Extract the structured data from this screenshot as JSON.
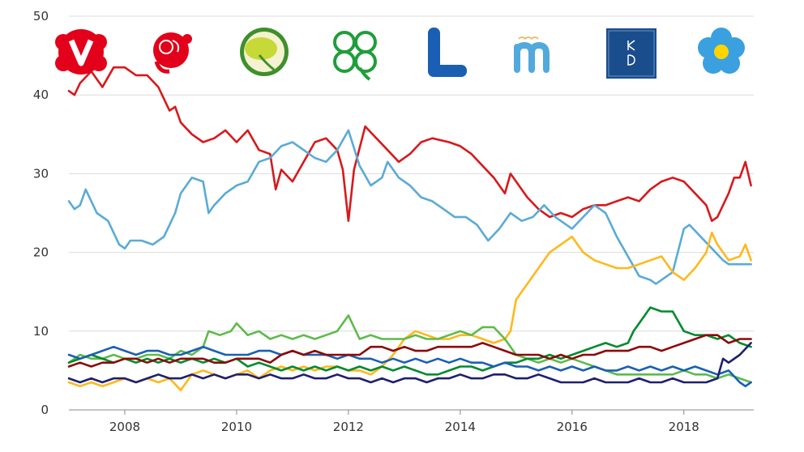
{
  "chart_data": {
    "type": "line",
    "title": "",
    "xlabel": "",
    "ylabel": "",
    "xlim": [
      2007.0,
      2019.25
    ],
    "ylim": [
      0,
      50
    ],
    "grid": true,
    "x_ticks": [
      {
        "value": 2008,
        "label": "2008"
      },
      {
        "value": 2010,
        "label": "2010"
      },
      {
        "value": 2012,
        "label": "2012"
      },
      {
        "value": 2014,
        "label": "2014"
      },
      {
        "value": 2016,
        "label": "2016"
      },
      {
        "value": 2018,
        "label": "2018"
      }
    ],
    "y_ticks": [
      {
        "value": 0,
        "label": "0"
      },
      {
        "value": 10,
        "label": "10"
      },
      {
        "value": 20,
        "label": "20"
      },
      {
        "value": 30,
        "label": "30"
      },
      {
        "value": 40,
        "label": "40"
      },
      {
        "value": 50,
        "label": "50"
      }
    ],
    "legend": {
      "placement": "top",
      "entries": [
        {
          "logo": "v-logo",
          "color": "#e2001a"
        },
        {
          "logo": "s-rose-logo",
          "color": "#e2001a"
        },
        {
          "logo": "mp-dandelion-logo",
          "color": "#5aa832"
        },
        {
          "logo": "c-clover-logo",
          "color": "#1f9e3a"
        },
        {
          "logo": "l-logo",
          "color": "#1a5fb4"
        },
        {
          "logo": "m-logo",
          "color": "#52a9dc"
        },
        {
          "logo": "kd-logo",
          "color": "#1a4d8c"
        },
        {
          "logo": "sd-flower-logo",
          "color": "#3aa0e0"
        }
      ]
    },
    "series": [
      {
        "color": "#d7191c",
        "x": [
          2007.0,
          2007.1,
          2007.2,
          2007.4,
          2007.6,
          2007.8,
          2008.0,
          2008.2,
          2008.4,
          2008.6,
          2008.8,
          2008.9,
          2009.0,
          2009.2,
          2009.4,
          2009.6,
          2009.8,
          2010.0,
          2010.2,
          2010.4,
          2010.6,
          2010.7,
          2010.8,
          2011.0,
          2011.2,
          2011.4,
          2011.6,
          2011.8,
          2011.9,
          2012.0,
          2012.1,
          2012.3,
          2012.5,
          2012.7,
          2012.9,
          2013.1,
          2013.3,
          2013.5,
          2013.8,
          2014.0,
          2014.2,
          2014.4,
          2014.6,
          2014.8,
          2014.9,
          2015.0,
          2015.2,
          2015.4,
          2015.6,
          2015.8,
          2016.0,
          2016.2,
          2016.4,
          2016.6,
          2016.8,
          2017.0,
          2017.2,
          2017.4,
          2017.6,
          2017.8,
          2018.0,
          2018.2,
          2018.4,
          2018.5,
          2018.6,
          2018.8,
          2018.9,
          2019.0,
          2019.1,
          2019.2
        ],
        "y": [
          40.5,
          40.0,
          41.5,
          43.0,
          41.0,
          43.5,
          43.5,
          42.5,
          42.5,
          41.0,
          38.0,
          38.5,
          36.5,
          35.0,
          34.0,
          34.5,
          35.5,
          34.0,
          35.5,
          33.0,
          32.5,
          28.0,
          30.5,
          29.0,
          31.5,
          34.0,
          34.5,
          33.0,
          30.5,
          24.0,
          30.5,
          36.0,
          34.5,
          33.0,
          31.5,
          32.5,
          34.0,
          34.5,
          34.0,
          33.5,
          32.5,
          31.0,
          29.5,
          27.5,
          30.0,
          29.0,
          27.0,
          25.5,
          24.5,
          25.0,
          24.5,
          25.5,
          26.0,
          26.0,
          26.5,
          27.0,
          26.5,
          28.0,
          29.0,
          29.5,
          29.0,
          27.5,
          26.0,
          24.0,
          24.5,
          27.5,
          29.5,
          29.5,
          31.5,
          28.5
        ]
      },
      {
        "color": "#5aabd6",
        "x": [
          2007.0,
          2007.1,
          2007.2,
          2007.3,
          2007.5,
          2007.7,
          2007.9,
          2008.0,
          2008.1,
          2008.3,
          2008.5,
          2008.7,
          2008.9,
          2009.0,
          2009.2,
          2009.4,
          2009.5,
          2009.6,
          2009.8,
          2010.0,
          2010.2,
          2010.4,
          2010.6,
          2010.8,
          2011.0,
          2011.2,
          2011.4,
          2011.6,
          2011.8,
          2012.0,
          2012.2,
          2012.4,
          2012.6,
          2012.7,
          2012.9,
          2013.1,
          2013.3,
          2013.5,
          2013.7,
          2013.9,
          2014.1,
          2014.3,
          2014.5,
          2014.7,
          2014.9,
          2015.1,
          2015.3,
          2015.5,
          2015.7,
          2015.9,
          2016.0,
          2016.2,
          2016.4,
          2016.6,
          2016.8,
          2017.0,
          2017.2,
          2017.4,
          2017.5,
          2017.6,
          2017.8,
          2018.0,
          2018.1,
          2018.3,
          2018.5,
          2018.7,
          2018.8,
          2019.0,
          2019.2
        ],
        "y": [
          26.5,
          25.5,
          26.0,
          28.0,
          25.0,
          24.0,
          21.0,
          20.5,
          21.5,
          21.5,
          21.0,
          22.0,
          25.0,
          27.5,
          29.5,
          29.0,
          25.0,
          26.0,
          27.5,
          28.5,
          29.0,
          31.5,
          32.0,
          33.5,
          34.0,
          33.0,
          32.0,
          31.5,
          33.0,
          35.5,
          31.0,
          28.5,
          29.5,
          31.5,
          29.5,
          28.5,
          27.0,
          26.5,
          25.5,
          24.5,
          24.5,
          23.5,
          21.5,
          23.0,
          25.0,
          24.0,
          24.5,
          26.0,
          24.5,
          23.5,
          23.0,
          24.5,
          26.0,
          25.0,
          22.0,
          19.5,
          17.0,
          16.5,
          16.0,
          16.5,
          17.5,
          23.0,
          23.5,
          22.0,
          20.5,
          19.0,
          18.5,
          18.5,
          18.5
        ]
      },
      {
        "color": "#ffb81c",
        "x": [
          2007.0,
          2007.2,
          2007.4,
          2007.6,
          2007.8,
          2008.0,
          2008.2,
          2008.4,
          2008.6,
          2008.8,
          2009.0,
          2009.1,
          2009.2,
          2009.4,
          2009.6,
          2009.8,
          2010.0,
          2010.2,
          2010.4,
          2010.6,
          2010.8,
          2011.0,
          2011.2,
          2011.4,
          2011.6,
          2011.8,
          2012.0,
          2012.2,
          2012.4,
          2012.6,
          2012.8,
          2013.0,
          2013.2,
          2013.4,
          2013.6,
          2013.8,
          2014.0,
          2014.2,
          2014.4,
          2014.6,
          2014.8,
          2014.9,
          2015.0,
          2015.2,
          2015.4,
          2015.6,
          2015.8,
          2016.0,
          2016.2,
          2016.4,
          2016.6,
          2016.8,
          2017.0,
          2017.2,
          2017.4,
          2017.6,
          2017.8,
          2018.0,
          2018.2,
          2018.4,
          2018.5,
          2018.6,
          2018.8,
          2019.0,
          2019.1,
          2019.2
        ],
        "y": [
          3.5,
          3.0,
          3.5,
          3.0,
          3.5,
          4.0,
          3.5,
          4.0,
          3.5,
          4.0,
          2.5,
          3.5,
          4.5,
          5.0,
          4.5,
          4.0,
          4.5,
          5.0,
          4.0,
          5.0,
          5.5,
          5.0,
          5.5,
          5.0,
          5.5,
          5.5,
          5.0,
          5.0,
          4.5,
          5.5,
          7.0,
          9.0,
          10.0,
          9.5,
          9.0,
          9.0,
          9.5,
          9.5,
          9.0,
          8.5,
          9.0,
          10.0,
          14.0,
          16.0,
          18.0,
          20.0,
          21.0,
          22.0,
          20.0,
          19.0,
          18.5,
          18.0,
          18.0,
          18.5,
          19.0,
          19.5,
          17.5,
          16.5,
          18.0,
          20.0,
          22.5,
          21.0,
          19.0,
          19.5,
          21.0,
          19.0
        ]
      },
      {
        "color": "#5dbb4a",
        "x": [
          2007.0,
          2007.2,
          2007.4,
          2007.6,
          2007.8,
          2008.0,
          2008.2,
          2008.4,
          2008.6,
          2008.8,
          2009.0,
          2009.2,
          2009.4,
          2009.5,
          2009.7,
          2009.9,
          2010.0,
          2010.2,
          2010.4,
          2010.6,
          2010.8,
          2011.0,
          2011.2,
          2011.4,
          2011.6,
          2011.8,
          2012.0,
          2012.2,
          2012.4,
          2012.6,
          2012.8,
          2013.0,
          2013.2,
          2013.4,
          2013.6,
          2013.8,
          2014.0,
          2014.2,
          2014.4,
          2014.6,
          2014.8,
          2015.0,
          2015.2,
          2015.4,
          2015.6,
          2015.8,
          2016.0,
          2016.2,
          2016.4,
          2016.6,
          2016.8,
          2017.0,
          2017.2,
          2017.4,
          2017.6,
          2017.8,
          2018.0,
          2018.2,
          2018.4,
          2018.6,
          2018.8,
          2019.0,
          2019.2
        ],
        "y": [
          6.0,
          7.0,
          6.5,
          6.5,
          7.0,
          6.5,
          6.5,
          7.0,
          7.0,
          6.5,
          7.5,
          7.0,
          8.0,
          10.0,
          9.5,
          10.0,
          11.0,
          9.5,
          10.0,
          9.0,
          9.5,
          9.0,
          9.5,
          9.0,
          9.5,
          10.0,
          12.0,
          9.0,
          9.5,
          9.0,
          9.0,
          9.0,
          9.5,
          9.0,
          9.0,
          9.5,
          10.0,
          9.5,
          10.5,
          10.5,
          9.0,
          7.0,
          6.5,
          6.0,
          6.5,
          6.0,
          6.5,
          6.0,
          5.5,
          5.0,
          4.5,
          4.5,
          4.5,
          4.5,
          4.5,
          4.5,
          5.0,
          4.5,
          4.5,
          4.0,
          4.5,
          4.0,
          3.5
        ]
      },
      {
        "color": "#008a2e",
        "x": [
          2007.0,
          2007.2,
          2007.4,
          2007.6,
          2007.8,
          2008.0,
          2008.2,
          2008.4,
          2008.6,
          2008.8,
          2009.0,
          2009.2,
          2009.4,
          2009.6,
          2009.8,
          2010.0,
          2010.2,
          2010.4,
          2010.6,
          2010.8,
          2011.0,
          2011.2,
          2011.4,
          2011.6,
          2011.8,
          2012.0,
          2012.2,
          2012.4,
          2012.6,
          2012.8,
          2013.0,
          2013.2,
          2013.4,
          2013.6,
          2013.8,
          2014.0,
          2014.2,
          2014.4,
          2014.6,
          2014.8,
          2015.0,
          2015.2,
          2015.4,
          2015.6,
          2015.8,
          2016.0,
          2016.2,
          2016.4,
          2016.6,
          2016.8,
          2017.0,
          2017.1,
          2017.2,
          2017.4,
          2017.6,
          2017.8,
          2018.0,
          2018.2,
          2018.4,
          2018.6,
          2018.8,
          2019.0,
          2019.2
        ],
        "y": [
          6.0,
          6.5,
          7.0,
          6.5,
          6.0,
          6.5,
          6.0,
          6.5,
          6.0,
          6.5,
          6.0,
          6.5,
          6.0,
          6.5,
          6.0,
          6.5,
          5.5,
          6.0,
          5.5,
          5.0,
          5.5,
          5.0,
          5.5,
          5.0,
          5.5,
          5.0,
          5.5,
          5.0,
          5.5,
          5.0,
          5.5,
          5.0,
          4.5,
          4.5,
          5.0,
          5.5,
          5.5,
          5.0,
          5.5,
          6.0,
          6.0,
          6.5,
          6.5,
          7.0,
          6.5,
          7.0,
          7.5,
          8.0,
          8.5,
          8.0,
          8.5,
          10.0,
          11.0,
          13.0,
          12.5,
          12.5,
          10.0,
          9.5,
          9.5,
          9.0,
          9.5,
          8.5,
          8.0
        ]
      },
      {
        "color": "#1a5fb4",
        "x": [
          2007.0,
          2007.2,
          2007.4,
          2007.6,
          2007.8,
          2008.0,
          2008.2,
          2008.4,
          2008.6,
          2008.8,
          2009.0,
          2009.2,
          2009.4,
          2009.6,
          2009.8,
          2010.0,
          2010.2,
          2010.4,
          2010.6,
          2010.8,
          2011.0,
          2011.2,
          2011.4,
          2011.6,
          2011.8,
          2012.0,
          2012.2,
          2012.4,
          2012.6,
          2012.8,
          2013.0,
          2013.2,
          2013.4,
          2013.6,
          2013.8,
          2014.0,
          2014.2,
          2014.4,
          2014.6,
          2014.8,
          2015.0,
          2015.2,
          2015.4,
          2015.6,
          2015.8,
          2016.0,
          2016.2,
          2016.4,
          2016.6,
          2016.8,
          2017.0,
          2017.2,
          2017.4,
          2017.6,
          2017.8,
          2018.0,
          2018.2,
          2018.4,
          2018.6,
          2018.8,
          2019.0,
          2019.1,
          2019.2
        ],
        "y": [
          7.0,
          6.5,
          7.0,
          7.5,
          8.0,
          7.5,
          7.0,
          7.5,
          7.5,
          7.0,
          7.0,
          7.5,
          8.0,
          7.5,
          7.0,
          7.0,
          7.0,
          7.5,
          7.5,
          7.0,
          7.5,
          7.0,
          7.0,
          7.0,
          6.5,
          7.0,
          6.5,
          6.5,
          6.0,
          6.5,
          6.0,
          6.5,
          6.0,
          6.5,
          6.0,
          6.5,
          6.0,
          6.0,
          5.5,
          6.0,
          5.5,
          5.5,
          5.0,
          5.5,
          5.0,
          5.5,
          5.0,
          5.5,
          5.0,
          5.0,
          5.5,
          5.0,
          5.5,
          5.0,
          5.5,
          5.0,
          5.5,
          5.0,
          4.5,
          5.0,
          3.5,
          3.0,
          3.5
        ]
      },
      {
        "color": "#1f1f6e",
        "x": [
          2007.0,
          2007.2,
          2007.4,
          2007.6,
          2007.8,
          2008.0,
          2008.2,
          2008.4,
          2008.6,
          2008.8,
          2009.0,
          2009.2,
          2009.4,
          2009.6,
          2009.8,
          2010.0,
          2010.2,
          2010.4,
          2010.6,
          2010.8,
          2011.0,
          2011.2,
          2011.4,
          2011.6,
          2011.8,
          2012.0,
          2012.2,
          2012.4,
          2012.6,
          2012.8,
          2013.0,
          2013.2,
          2013.4,
          2013.6,
          2013.8,
          2014.0,
          2014.2,
          2014.4,
          2014.6,
          2014.8,
          2015.0,
          2015.2,
          2015.4,
          2015.6,
          2015.8,
          2016.0,
          2016.2,
          2016.4,
          2016.6,
          2016.8,
          2017.0,
          2017.2,
          2017.4,
          2017.6,
          2017.8,
          2018.0,
          2018.2,
          2018.4,
          2018.6,
          2018.7,
          2018.8,
          2019.0,
          2019.2
        ],
        "y": [
          4.0,
          3.5,
          4.0,
          3.5,
          4.0,
          4.0,
          3.5,
          4.0,
          4.5,
          4.0,
          4.0,
          4.5,
          4.0,
          4.5,
          4.0,
          4.5,
          4.5,
          4.0,
          4.5,
          4.0,
          4.0,
          4.5,
          4.0,
          4.0,
          4.5,
          4.0,
          4.0,
          3.5,
          4.0,
          3.5,
          4.0,
          4.0,
          3.5,
          4.0,
          4.0,
          4.5,
          4.0,
          4.0,
          4.5,
          4.5,
          4.0,
          4.0,
          4.5,
          4.0,
          3.5,
          3.5,
          3.5,
          4.0,
          3.5,
          3.5,
          3.5,
          4.0,
          3.5,
          3.5,
          4.0,
          3.5,
          3.5,
          3.5,
          4.0,
          6.5,
          6.0,
          7.0,
          8.5
        ]
      },
      {
        "color": "#8b0a0a",
        "x": [
          2007.0,
          2007.2,
          2007.4,
          2007.6,
          2007.8,
          2008.0,
          2008.2,
          2008.4,
          2008.6,
          2008.8,
          2009.0,
          2009.2,
          2009.4,
          2009.6,
          2009.8,
          2010.0,
          2010.2,
          2010.4,
          2010.6,
          2010.8,
          2011.0,
          2011.2,
          2011.4,
          2011.6,
          2011.8,
          2012.0,
          2012.2,
          2012.4,
          2012.6,
          2012.8,
          2013.0,
          2013.2,
          2013.4,
          2013.6,
          2013.8,
          2014.0,
          2014.2,
          2014.4,
          2014.6,
          2014.8,
          2015.0,
          2015.2,
          2015.4,
          2015.6,
          2015.8,
          2016.0,
          2016.2,
          2016.4,
          2016.6,
          2016.8,
          2017.0,
          2017.2,
          2017.4,
          2017.6,
          2017.8,
          2018.0,
          2018.2,
          2018.4,
          2018.6,
          2018.8,
          2019.0,
          2019.2
        ],
        "y": [
          5.5,
          6.0,
          5.5,
          6.0,
          6.0,
          6.5,
          6.5,
          6.0,
          6.5,
          6.0,
          6.5,
          6.5,
          6.5,
          6.0,
          6.0,
          6.5,
          6.5,
          6.5,
          6.0,
          7.0,
          7.5,
          7.0,
          7.5,
          7.0,
          7.0,
          7.0,
          7.0,
          8.0,
          8.0,
          7.5,
          8.0,
          7.5,
          7.5,
          8.0,
          8.0,
          8.0,
          8.0,
          8.5,
          8.0,
          7.5,
          7.0,
          7.0,
          7.0,
          6.5,
          7.0,
          6.5,
          7.0,
          7.0,
          7.5,
          7.5,
          7.5,
          8.0,
          8.0,
          7.5,
          8.0,
          8.5,
          9.0,
          9.5,
          9.5,
          8.5,
          9.0,
          9.0
        ]
      }
    ]
  }
}
